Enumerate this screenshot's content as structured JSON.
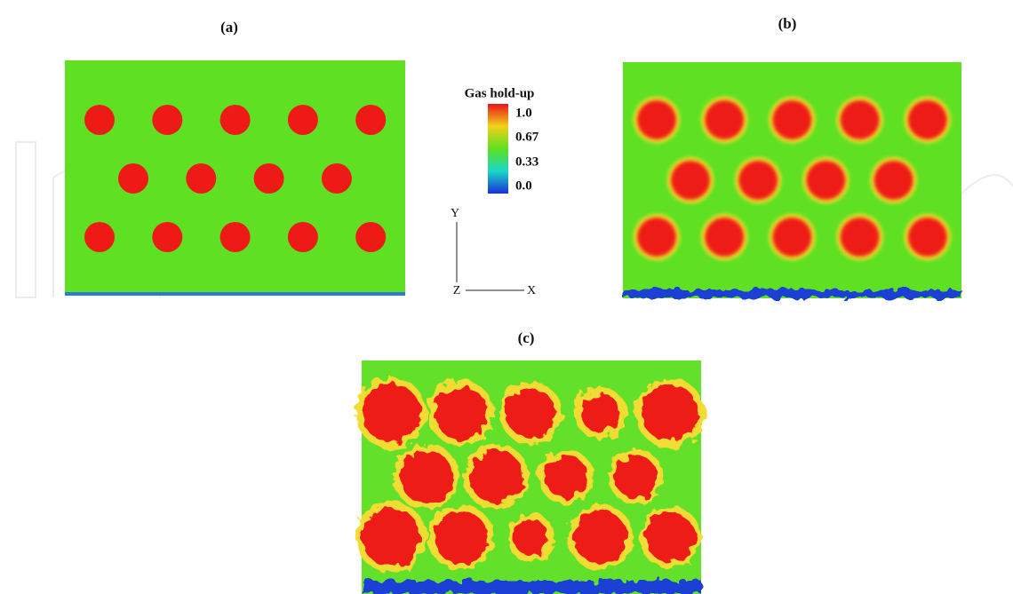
{
  "panels": [
    {
      "label": "(a)"
    },
    {
      "label": "(b)"
    },
    {
      "label": "(c)"
    }
  ],
  "legend": {
    "title": "Gas hold-up",
    "labels": [
      "1.0",
      "0.67",
      "0.33",
      "0.0"
    ]
  },
  "axes": {
    "y": "Y",
    "z": "Z",
    "x": "X"
  }
}
